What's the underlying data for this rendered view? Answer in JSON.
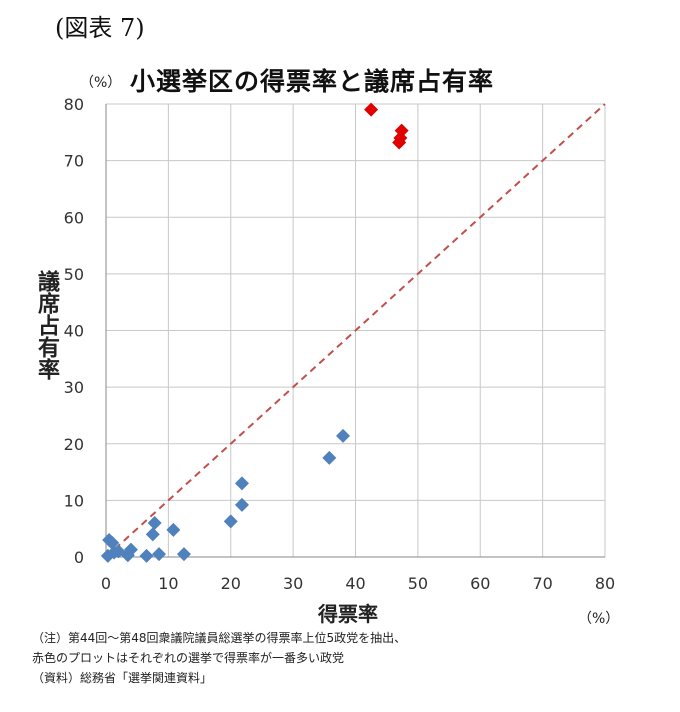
{
  "figure_label": "(図表 7)",
  "unit_top": "（%）",
  "unit_x": "（%）",
  "notes": [
    "（注）第44回～第48回衆議院議員総選挙の得票率上位5政党を抽出、",
    "赤色のプロットはそれぞれの選挙で得票率が一番多い政党",
    "（資料）総務省「選挙関連資料」"
  ],
  "chart_data": {
    "type": "scatter",
    "title": "小選挙区の得票率と議席占有率",
    "xlabel": "得票率",
    "ylabel": "議席占有率",
    "xlim": [
      0,
      80
    ],
    "ylim": [
      0,
      80
    ],
    "xticks": [
      0,
      10,
      20,
      30,
      40,
      50,
      60,
      70,
      80
    ],
    "yticks": [
      0,
      10,
      20,
      30,
      40,
      50,
      60,
      70,
      80
    ],
    "grid": true,
    "reference_line": {
      "x": [
        0,
        80
      ],
      "y": [
        0,
        80
      ],
      "style": "dashed",
      "color": "#C0504D"
    },
    "series": [
      {
        "color": "#4F81BD",
        "marker": "diamond",
        "points": [
          [
            0.3,
            0.2
          ],
          [
            0.5,
            3.0
          ],
          [
            1.0,
            2.5
          ],
          [
            1.3,
            0.8
          ],
          [
            2.0,
            1.0
          ],
          [
            3.5,
            0.3
          ],
          [
            4.0,
            1.3
          ],
          [
            6.5,
            0.2
          ],
          [
            7.5,
            4.0
          ],
          [
            7.8,
            6.0
          ],
          [
            8.5,
            0.5
          ],
          [
            10.8,
            4.8
          ],
          [
            12.5,
            0.5
          ],
          [
            20.0,
            6.3
          ],
          [
            21.8,
            9.2
          ],
          [
            21.8,
            13.0
          ],
          [
            35.8,
            17.5
          ],
          [
            38.0,
            21.4
          ]
        ]
      },
      {
        "color": "#E00000",
        "marker": "diamond",
        "points": [
          [
            42.5,
            79.0
          ],
          [
            47.0,
            73.2
          ],
          [
            47.2,
            74.0
          ],
          [
            47.4,
            75.3
          ]
        ]
      }
    ]
  }
}
